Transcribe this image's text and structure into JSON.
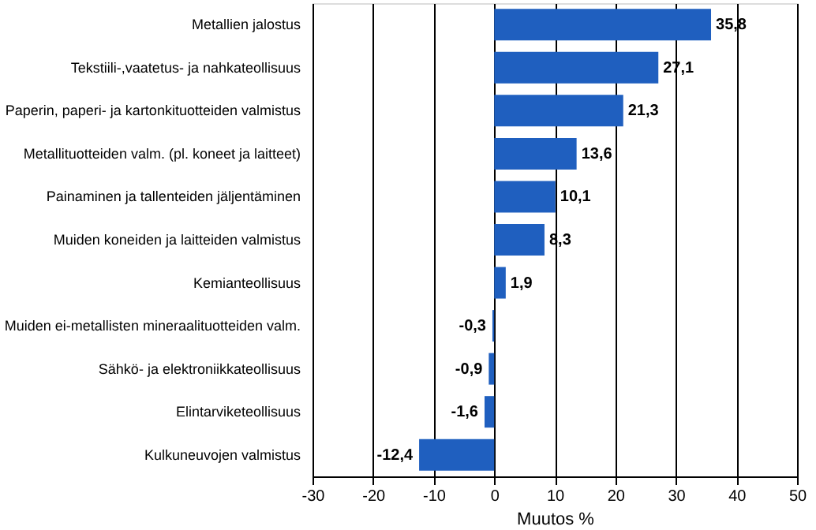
{
  "chart_data": {
    "type": "bar",
    "orientation": "horizontal",
    "xlabel": "Muutos  %",
    "categories": [
      "Metallien jalostus",
      "Tekstiili-,vaatetus- ja nahkateollisuus",
      "Paperin, paperi- ja kartonkituotteiden valmistus",
      "Metallituotteiden valm. (pl. koneet ja laitteet)",
      "Painaminen ja tallenteiden jäljentäminen",
      "Muiden koneiden ja laitteiden valmistus",
      "Kemianteollisuus",
      "Muiden ei-metallisten mineraalituotteiden valm.",
      "Sähkö- ja elektroniikkateollisuus",
      "Elintarviketeollisuus",
      "Kulkuneuvojen valmistus"
    ],
    "values": [
      35.8,
      27.1,
      21.3,
      13.6,
      10.1,
      8.3,
      1.9,
      -0.3,
      -0.9,
      -1.6,
      -12.4
    ],
    "value_labels": [
      "35,8",
      "27,1",
      "21,3",
      "13,6",
      "10,1",
      "8,3",
      "1,9",
      "-0,3",
      "-0,9",
      "-1,6",
      "-12,4"
    ],
    "color": "#1f5fbf",
    "xlim": [
      -30,
      50
    ],
    "xticks": [
      -30,
      -20,
      -10,
      0,
      10,
      20,
      30,
      40,
      50
    ],
    "grid": "x"
  }
}
